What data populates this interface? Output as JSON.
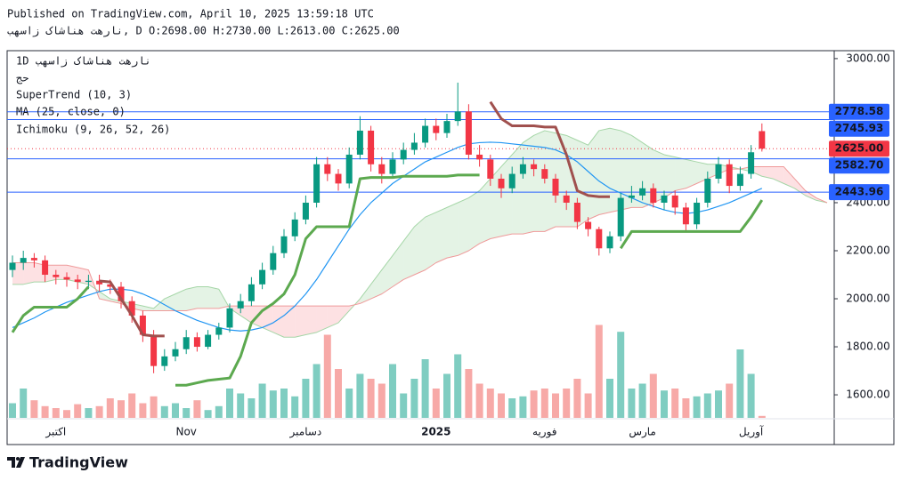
{
  "header": {
    "published": "Published on TradingView.com, April 10, 2025 13:59:18 UTC",
    "ohlc": "نارهت هناشاک زاسهب, D O:2698.00 H:2730.00 L:2613.00 C:2625.00"
  },
  "footer": {
    "brand": "TradingView"
  },
  "chart_data": {
    "type": "candlestick",
    "title": "1D نارهت هناشاک زاسهب",
    "categories": [
      null,
      null,
      null,
      null,
      "اکتبر",
      null,
      null,
      null,
      null,
      null,
      null,
      null,
      null,
      null,
      null,
      null,
      "Nov",
      null,
      null,
      null,
      null,
      null,
      null,
      null,
      null,
      null,
      null,
      "دسامبر",
      null,
      null,
      null,
      null,
      null,
      null,
      null,
      null,
      null,
      null,
      null,
      "2025",
      null,
      null,
      null,
      null,
      null,
      null,
      null,
      null,
      null,
      "فوریه",
      null,
      null,
      null,
      null,
      null,
      null,
      null,
      null,
      "مارس",
      null,
      null,
      null,
      null,
      null,
      null,
      null,
      null,
      null,
      "آوریل",
      null
    ],
    "open": [
      2120,
      2150,
      2170,
      2160,
      2100,
      2090,
      2080,
      2070,
      2075,
      2060,
      2050,
      1990,
      1930,
      1850,
      1720,
      1760,
      1790,
      1840,
      1800,
      1850,
      1880,
      1960,
      1990,
      2060,
      2120,
      2190,
      2260,
      2330,
      2400,
      2560,
      2520,
      2480,
      2600,
      2700,
      2560,
      2520,
      2580,
      2620,
      2650,
      2720,
      2690,
      2740,
      2780,
      2600,
      2580,
      2500,
      2460,
      2520,
      2560,
      2540,
      2500,
      2430,
      2400,
      2320,
      2290,
      2210,
      2260,
      2420,
      2430,
      2460,
      2400,
      2430,
      2380,
      2310,
      2400,
      2500,
      2560,
      2470,
      2520,
      2698
    ],
    "high": [
      2180,
      2200,
      2190,
      2180,
      2120,
      2110,
      2100,
      2100,
      2100,
      2080,
      2070,
      2010,
      1950,
      1870,
      1790,
      1820,
      1870,
      1860,
      1870,
      1900,
      1980,
      2020,
      2090,
      2150,
      2220,
      2290,
      2360,
      2430,
      2590,
      2590,
      2540,
      2630,
      2760,
      2720,
      2590,
      2610,
      2650,
      2690,
      2750,
      2750,
      2770,
      2900,
      2810,
      2640,
      2600,
      2520,
      2550,
      2590,
      2580,
      2560,
      2520,
      2450,
      2420,
      2340,
      2300,
      2280,
      2440,
      2470,
      2490,
      2480,
      2450,
      2450,
      2400,
      2420,
      2530,
      2590,
      2580,
      2550,
      2640,
      2730
    ],
    "low": [
      2090,
      2120,
      2130,
      2070,
      2060,
      2050,
      2040,
      2040,
      2030,
      2020,
      1960,
      1900,
      1820,
      1690,
      1700,
      1740,
      1770,
      1780,
      1790,
      1830,
      1860,
      1940,
      1970,
      2040,
      2100,
      2170,
      2240,
      2310,
      2380,
      2490,
      2450,
      2460,
      2580,
      2530,
      2480,
      2500,
      2560,
      2600,
      2630,
      2660,
      2670,
      2720,
      2580,
      2550,
      2470,
      2420,
      2440,
      2500,
      2510,
      2480,
      2400,
      2370,
      2290,
      2260,
      2180,
      2190,
      2240,
      2400,
      2410,
      2380,
      2370,
      2350,
      2280,
      2290,
      2380,
      2480,
      2440,
      2450,
      2500,
      2613
    ],
    "close": [
      2150,
      2170,
      2160,
      2100,
      2090,
      2080,
      2070,
      2075,
      2060,
      2050,
      1990,
      1930,
      1850,
      1720,
      1760,
      1790,
      1840,
      1800,
      1850,
      1880,
      1960,
      1990,
      2060,
      2120,
      2190,
      2260,
      2330,
      2400,
      2560,
      2520,
      2480,
      2600,
      2700,
      2560,
      2520,
      2580,
      2620,
      2650,
      2720,
      2690,
      2740,
      2780,
      2600,
      2580,
      2500,
      2460,
      2520,
      2560,
      2540,
      2500,
      2430,
      2400,
      2320,
      2290,
      2210,
      2260,
      2420,
      2430,
      2460,
      2400,
      2430,
      2380,
      2310,
      2400,
      2500,
      2560,
      2470,
      2520,
      2610,
      2625
    ],
    "up_color": "#089981",
    "down_color": "#f23645",
    "volume": {
      "name": "حج",
      "ylim": [
        0,
        100
      ],
      "up_color": "#7fcdc1",
      "down_color": "#f7a9a7",
      "values": [
        15,
        30,
        18,
        12,
        10,
        8,
        14,
        10,
        12,
        20,
        18,
        25,
        15,
        22,
        12,
        15,
        10,
        18,
        8,
        12,
        30,
        25,
        20,
        35,
        28,
        30,
        22,
        40,
        55,
        85,
        50,
        30,
        45,
        40,
        35,
        55,
        25,
        40,
        60,
        30,
        45,
        65,
        50,
        35,
        30,
        25,
        20,
        22,
        28,
        30,
        25,
        30,
        40,
        25,
        95,
        40,
        88,
        30,
        35,
        45,
        28,
        30,
        20,
        22,
        25,
        28,
        35,
        70,
        45,
        2
      ]
    },
    "supertrend": {
      "name": "SuperTrend (10, 3)",
      "up_color": "#5ca94f",
      "down_color": "#a0504e",
      "up": [
        1860,
        1930,
        1965,
        1965,
        1965,
        1965,
        2000,
        2050,
        null,
        null,
        null,
        null,
        null,
        null,
        null,
        1640,
        1640,
        1650,
        1660,
        1665,
        1670,
        1760,
        1900,
        1950,
        1980,
        2020,
        2100,
        2250,
        2300,
        2300,
        2300,
        2300,
        2500,
        2505,
        2505,
        2505,
        2510,
        2510,
        2510,
        2510,
        2510,
        2515,
        2515,
        2515,
        null,
        null,
        null,
        null,
        null,
        null,
        null,
        null,
        null,
        null,
        null,
        null,
        2210,
        2280,
        2280,
        2280,
        2280,
        2280,
        2280,
        2280,
        2280,
        2280,
        2280,
        2280,
        2340,
        2411
      ],
      "down": [
        null,
        null,
        null,
        null,
        null,
        null,
        null,
        null,
        2074,
        2070,
        2000,
        1930,
        1850,
        1845,
        1845,
        null,
        null,
        null,
        null,
        null,
        null,
        null,
        null,
        null,
        null,
        null,
        null,
        null,
        null,
        null,
        null,
        null,
        null,
        null,
        null,
        null,
        null,
        null,
        null,
        null,
        null,
        null,
        null,
        null,
        2820,
        2750,
        2720,
        2720,
        2720,
        2715,
        2715,
        2600,
        2450,
        2430,
        2425,
        2425,
        null,
        null,
        null,
        null,
        null,
        null,
        null,
        null,
        null,
        null,
        null,
        null,
        null,
        null
      ]
    },
    "ma": {
      "name": "MA (25, close, 0)",
      "color": "#2196f3",
      "values": [
        1880,
        1900,
        1920,
        1945,
        1965,
        1985,
        2000,
        2015,
        2030,
        2040,
        2040,
        2035,
        2020,
        2000,
        1975,
        1950,
        1930,
        1910,
        1895,
        1880,
        1870,
        1866,
        1870,
        1880,
        1900,
        1930,
        1970,
        2020,
        2080,
        2150,
        2220,
        2290,
        2350,
        2400,
        2440,
        2480,
        2510,
        2540,
        2570,
        2590,
        2610,
        2630,
        2645,
        2650,
        2652,
        2650,
        2645,
        2640,
        2635,
        2630,
        2620,
        2600,
        2570,
        2530,
        2490,
        2460,
        2440,
        2420,
        2400,
        2385,
        2370,
        2360,
        2355,
        2360,
        2370,
        2385,
        2400,
        2420,
        2440,
        2460
      ]
    },
    "ichimoku": {
      "name": "Ichimoku (9, 26, 52, 26)",
      "a_color": "#a5d6a7",
      "b_color": "#ef9a9a",
      "up_fill": "rgba(76,175,80,0.15)",
      "down_fill": "rgba(242,54,69,0.15)",
      "span_a": [
        2060,
        2060,
        2070,
        2070,
        2080,
        2080,
        2070,
        2060,
        2030,
        2000,
        1990,
        1980,
        1970,
        1960,
        2000,
        2020,
        2040,
        2050,
        2050,
        2040,
        1960,
        1930,
        1900,
        1880,
        1860,
        1840,
        1840,
        1850,
        1860,
        1880,
        1900,
        1950,
        2000,
        2060,
        2120,
        2180,
        2240,
        2300,
        2340,
        2360,
        2380,
        2400,
        2420,
        2450,
        2500,
        2550,
        2600,
        2650,
        2680,
        2700,
        2690,
        2680,
        2660,
        2640,
        2700,
        2710,
        2700,
        2680,
        2650,
        2620,
        2600,
        2590,
        2580,
        2570,
        2560,
        2560,
        2550,
        2540,
        2530,
        2510,
        2500,
        2480,
        2460,
        2430,
        2410,
        2400
      ],
      "span_b": [
        2150,
        2150,
        2150,
        2140,
        2140,
        2140,
        2130,
        2120,
        2000,
        1990,
        1980,
        1960,
        1950,
        1950,
        1950,
        1950,
        1950,
        1960,
        1960,
        1960,
        1970,
        1970,
        1970,
        1970,
        1970,
        1970,
        1970,
        1970,
        1970,
        1970,
        1970,
        1970,
        1980,
        2000,
        2020,
        2050,
        2080,
        2100,
        2120,
        2150,
        2170,
        2180,
        2200,
        2230,
        2250,
        2260,
        2270,
        2270,
        2280,
        2280,
        2300,
        2300,
        2300,
        2330,
        2350,
        2360,
        2370,
        2380,
        2380,
        2400,
        2420,
        2450,
        2460,
        2480,
        2500,
        2520,
        2540,
        2540,
        2550,
        2550,
        2550,
        2550,
        2500,
        2450,
        2420,
        2400
      ]
    },
    "ylim": [
      1504,
      3033
    ],
    "yticks": [
      {
        "value": 1600,
        "label": "1600.00"
      },
      {
        "value": 1800,
        "label": "1800.00"
      },
      {
        "value": 2000,
        "label": "2000.00"
      },
      {
        "value": 2200,
        "label": "2200.00"
      },
      {
        "value": 2400,
        "label": "2400.00"
      },
      {
        "value": 3000,
        "label": "3000.00"
      }
    ],
    "price_lines": [
      {
        "value": 2778.58,
        "label": "2778.58",
        "color": "#2962ff"
      },
      {
        "value": 2745.93,
        "label": "2745.93",
        "color": "#2962ff"
      },
      {
        "value": 2625,
        "label": "2625.00",
        "color": "#f23645",
        "dotted": true
      },
      {
        "value": 2582.7,
        "label": "2582.70",
        "color": "#2962ff"
      },
      {
        "value": 2443.96,
        "label": "2443.96",
        "color": "#2962ff"
      }
    ]
  }
}
